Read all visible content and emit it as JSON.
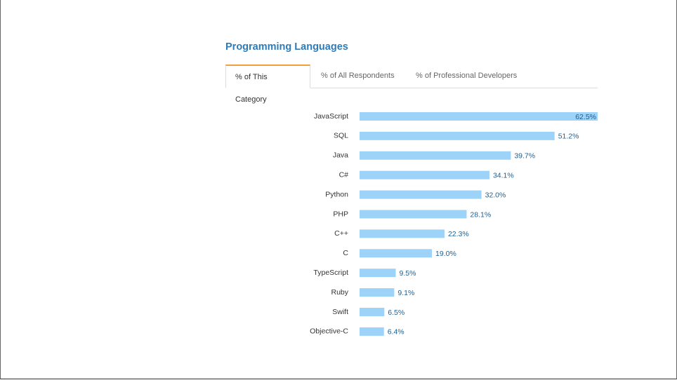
{
  "header": {
    "title": "Programming Languages"
  },
  "tabs": [
    "% of This Category",
    "% of All Respondents",
    "% of Professional Developers"
  ],
  "chart_data": {
    "type": "bar",
    "orientation": "horizontal",
    "color": "#9dd3f8",
    "categories": [
      "JavaScript",
      "SQL",
      "Java",
      "C#",
      "Python",
      "PHP",
      "C++",
      "C",
      "TypeScript",
      "Ruby",
      "Swift",
      "Objective-C"
    ],
    "values": [
      62.5,
      51.2,
      39.7,
      34.1,
      32.0,
      28.1,
      22.3,
      19.0,
      9.5,
      9.1,
      6.5,
      6.4
    ],
    "value_labels": [
      "62.5%",
      "51.2%",
      "39.7%",
      "34.1%",
      "32.0%",
      "28.1%",
      "22.3%",
      "19.0%",
      "9.5%",
      "9.1%",
      "6.5%",
      "6.4%"
    ]
  }
}
